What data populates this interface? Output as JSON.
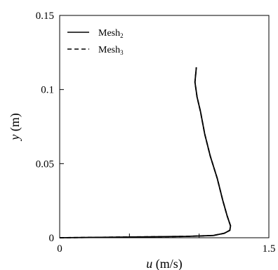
{
  "chart_data": {
    "type": "line",
    "title": "",
    "xlabel": {
      "var": "u",
      "unit": " (m/s)"
    },
    "ylabel": {
      "var": "y",
      "unit": " (m)"
    },
    "xlim": [
      0,
      1.5
    ],
    "ylim": [
      0,
      0.15
    ],
    "xticks": [
      0,
      0.5,
      1.0,
      1.5
    ],
    "xtick_labels": [
      "0",
      "",
      "",
      "1.5"
    ],
    "yticks": [
      0,
      0.05,
      0.1,
      0.15
    ],
    "ytick_labels": [
      "0",
      "0.05",
      "0.1",
      "0.15"
    ],
    "grid": false,
    "legend": {
      "placement": "top-left"
    },
    "series": [
      {
        "name": {
          "base": "Mesh",
          "sub": "2"
        },
        "line_style": "solid",
        "color": "#000000",
        "points": [
          [
            0.0,
            0.0
          ],
          [
            0.3,
            0.0003
          ],
          [
            0.6,
            0.0006
          ],
          [
            0.9,
            0.0009
          ],
          [
            1.1,
            0.0015
          ],
          [
            1.18,
            0.003
          ],
          [
            1.22,
            0.005
          ],
          [
            1.225,
            0.008
          ],
          [
            1.2,
            0.015
          ],
          [
            1.17,
            0.025
          ],
          [
            1.13,
            0.04
          ],
          [
            1.08,
            0.055
          ],
          [
            1.04,
            0.07
          ],
          [
            1.01,
            0.085
          ],
          [
            0.985,
            0.095
          ],
          [
            0.97,
            0.105
          ],
          [
            0.975,
            0.11
          ],
          [
            0.98,
            0.115
          ]
        ]
      },
      {
        "name": {
          "base": "Mesh",
          "sub": "3"
        },
        "line_style": "dashed",
        "color": "#000000",
        "points": [
          [
            0.0,
            0.0
          ],
          [
            0.3,
            0.0003
          ],
          [
            0.6,
            0.0006
          ],
          [
            0.9,
            0.0009
          ],
          [
            1.1,
            0.0015
          ],
          [
            1.18,
            0.003
          ],
          [
            1.22,
            0.005
          ],
          [
            1.225,
            0.008
          ],
          [
            1.2,
            0.015
          ],
          [
            1.17,
            0.025
          ],
          [
            1.13,
            0.04
          ],
          [
            1.08,
            0.055
          ],
          [
            1.04,
            0.07
          ],
          [
            1.01,
            0.085
          ],
          [
            0.985,
            0.095
          ],
          [
            0.97,
            0.105
          ],
          [
            0.975,
            0.11
          ],
          [
            0.98,
            0.115
          ]
        ]
      }
    ]
  }
}
